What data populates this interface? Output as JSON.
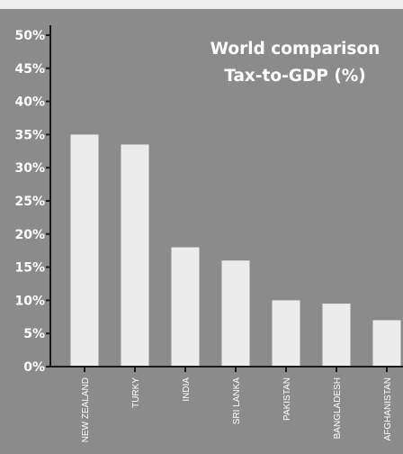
{
  "chart_data": {
    "type": "bar",
    "title": [
      "World comparison",
      "Tax-to-GDP (%)"
    ],
    "categories": [
      "NEW ZEALAND",
      "TURKY",
      "INDIA",
      "SRI LANKA",
      "PAKISTAN",
      "BANGLADESH",
      "AFGHANISTAN"
    ],
    "values": [
      35,
      33.5,
      18,
      16,
      10,
      9.5,
      7
    ],
    "y_ticks": [
      "0%",
      "5%",
      "10%",
      "15%",
      "20%",
      "25%",
      "30%",
      "35%",
      "40%",
      "45%",
      "50%"
    ],
    "ylim": [
      0,
      50
    ],
    "grid": false,
    "colors": {
      "background": "#8b8b8b",
      "bar": "#ececec",
      "axis": "#1a1a1a",
      "text": "#ffffff"
    }
  }
}
